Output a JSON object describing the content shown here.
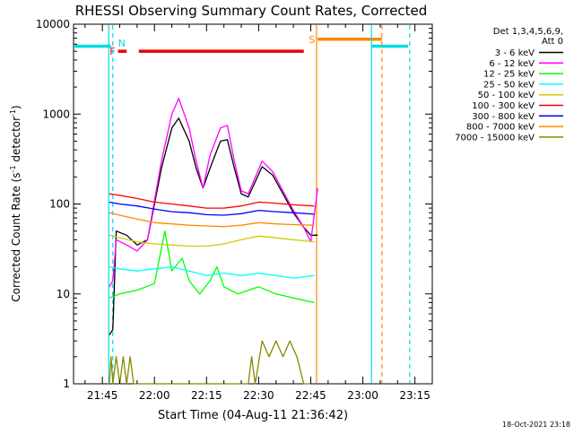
{
  "chart_data": {
    "type": "line",
    "title": "RHESSI Observing Summary Count Rates, Corrected",
    "xlabel": "Start Time (04-Aug-11 21:36:42)",
    "ylabel_prefix": "Corrected Count Rate (s",
    "ylabel_sup1": "-1",
    "ylabel_mid": " detector",
    "ylabel_sup2": "-1",
    "ylabel_suffix": ")",
    "yscale": "log",
    "ylim": [
      1,
      10000
    ],
    "xlim": [
      "21:36:42",
      "23:20:00"
    ],
    "y_ticks": [
      "1",
      "10",
      "100",
      "1000",
      "10000"
    ],
    "x_ticks": [
      "21:45",
      "22:00",
      "22:15",
      "22:30",
      "22:45",
      "23:00",
      "23:15"
    ],
    "grid": false,
    "legend": {
      "placement": "right",
      "header": [
        "Det 1,3,4,5,6,9,",
        "Att 0"
      ],
      "entries": [
        {
          "label": "3 - 6 keV",
          "color": "#000000"
        },
        {
          "label": "6 - 12 keV",
          "color": "#ff00ff"
        },
        {
          "label": "12 - 25 keV",
          "color": "#00ff00"
        },
        {
          "label": "25 - 50 keV",
          "color": "#00ffff"
        },
        {
          "label": "50 - 100 keV",
          "color": "#cccc00"
        },
        {
          "label": "100 - 300 keV",
          "color": "#ff0000"
        },
        {
          "label": "300 - 800 keV",
          "color": "#0000ff"
        },
        {
          "label": "800 - 7000 keV",
          "color": "#ff8800"
        },
        {
          "label": "7000 - 15000 keV",
          "color": "#888800"
        }
      ]
    },
    "series": [
      {
        "name": "3 - 6 keV",
        "color": "#000000",
        "points": [
          [
            "21:47:00",
            3.5
          ],
          [
            "21:48:00",
            4
          ],
          [
            "21:49:00",
            50
          ],
          [
            "21:52:00",
            45
          ],
          [
            "21:55:00",
            35
          ],
          [
            "21:58:00",
            40
          ],
          [
            "22:02:00",
            250
          ],
          [
            "22:05:00",
            700
          ],
          [
            "22:07:00",
            900
          ],
          [
            "22:10:00",
            500
          ],
          [
            "22:12:00",
            250
          ],
          [
            "22:14:00",
            150
          ],
          [
            "22:16:00",
            250
          ],
          [
            "22:19:00",
            500
          ],
          [
            "22:21:00",
            520
          ],
          [
            "22:23:00",
            250
          ],
          [
            "22:25:00",
            130
          ],
          [
            "22:27:00",
            120
          ],
          [
            "22:31:00",
            260
          ],
          [
            "22:34:00",
            210
          ],
          [
            "22:37:00",
            130
          ],
          [
            "22:40:00",
            80
          ],
          [
            "22:43:00",
            55
          ],
          [
            "22:45:00",
            45
          ],
          [
            "22:47:00",
            45
          ]
        ]
      },
      {
        "name": "6 - 12 keV",
        "color": "#ff00ff",
        "points": [
          [
            "21:47:00",
            12
          ],
          [
            "21:48:00",
            14
          ],
          [
            "21:49:00",
            40
          ],
          [
            "21:52:00",
            35
          ],
          [
            "21:55:00",
            30
          ],
          [
            "21:58:00",
            40
          ],
          [
            "22:02:00",
            300
          ],
          [
            "22:05:00",
            1000
          ],
          [
            "22:07:00",
            1500
          ],
          [
            "22:10:00",
            700
          ],
          [
            "22:12:00",
            300
          ],
          [
            "22:14:00",
            150
          ],
          [
            "22:16:00",
            350
          ],
          [
            "22:19:00",
            700
          ],
          [
            "22:21:00",
            750
          ],
          [
            "22:23:00",
            300
          ],
          [
            "22:25:00",
            140
          ],
          [
            "22:27:00",
            130
          ],
          [
            "22:31:00",
            300
          ],
          [
            "22:34:00",
            230
          ],
          [
            "22:37:00",
            140
          ],
          [
            "22:40:00",
            85
          ],
          [
            "22:43:00",
            55
          ],
          [
            "22:45:00",
            38
          ],
          [
            "22:47:00",
            150
          ]
        ]
      },
      {
        "name": "12 - 25 keV",
        "color": "#00ff00",
        "points": [
          [
            "21:47:00",
            9
          ],
          [
            "21:50:00",
            10
          ],
          [
            "21:55:00",
            11
          ],
          [
            "22:00:00",
            13
          ],
          [
            "22:03:00",
            50
          ],
          [
            "22:05:00",
            18
          ],
          [
            "22:08:00",
            25
          ],
          [
            "22:10:00",
            14
          ],
          [
            "22:13:00",
            10
          ],
          [
            "22:16:00",
            14
          ],
          [
            "22:18:00",
            20
          ],
          [
            "22:20:00",
            12
          ],
          [
            "22:24:00",
            10
          ],
          [
            "22:30:00",
            12
          ],
          [
            "22:35:00",
            10
          ],
          [
            "22:40:00",
            9
          ],
          [
            "22:46:00",
            8
          ]
        ]
      },
      {
        "name": "25 - 50 keV",
        "color": "#00ffff",
        "points": [
          [
            "21:47:00",
            20
          ],
          [
            "21:50:00",
            19
          ],
          [
            "21:55:00",
            18
          ],
          [
            "22:00:00",
            19
          ],
          [
            "22:05:00",
            20
          ],
          [
            "22:10:00",
            18
          ],
          [
            "22:15:00",
            16
          ],
          [
            "22:20:00",
            17
          ],
          [
            "22:25:00",
            16
          ],
          [
            "22:30:00",
            17
          ],
          [
            "22:35:00",
            16
          ],
          [
            "22:40:00",
            15
          ],
          [
            "22:46:00",
            16
          ]
        ]
      },
      {
        "name": "50 - 100 keV",
        "color": "#cccc00",
        "points": [
          [
            "21:47:00",
            45
          ],
          [
            "21:50:00",
            42
          ],
          [
            "21:55:00",
            38
          ],
          [
            "22:00:00",
            36
          ],
          [
            "22:05:00",
            35
          ],
          [
            "22:10:00",
            34
          ],
          [
            "22:15:00",
            34
          ],
          [
            "22:20:00",
            36
          ],
          [
            "22:25:00",
            40
          ],
          [
            "22:30:00",
            44
          ],
          [
            "22:35:00",
            42
          ],
          [
            "22:40:00",
            40
          ],
          [
            "22:46:00",
            38
          ]
        ]
      },
      {
        "name": "100 - 300 keV",
        "color": "#ff0000",
        "points": [
          [
            "21:47:00",
            130
          ],
          [
            "21:50:00",
            125
          ],
          [
            "21:55:00",
            115
          ],
          [
            "22:00:00",
            105
          ],
          [
            "22:05:00",
            100
          ],
          [
            "22:10:00",
            95
          ],
          [
            "22:15:00",
            90
          ],
          [
            "22:20:00",
            90
          ],
          [
            "22:25:00",
            95
          ],
          [
            "22:30:00",
            105
          ],
          [
            "22:35:00",
            102
          ],
          [
            "22:40:00",
            98
          ],
          [
            "22:46:00",
            95
          ]
        ]
      },
      {
        "name": "300 - 800 keV",
        "color": "#0000ff",
        "points": [
          [
            "21:47:00",
            105
          ],
          [
            "21:50:00",
            100
          ],
          [
            "21:55:00",
            95
          ],
          [
            "22:00:00",
            88
          ],
          [
            "22:05:00",
            82
          ],
          [
            "22:10:00",
            80
          ],
          [
            "22:15:00",
            76
          ],
          [
            "22:20:00",
            75
          ],
          [
            "22:25:00",
            78
          ],
          [
            "22:30:00",
            85
          ],
          [
            "22:35:00",
            82
          ],
          [
            "22:40:00",
            80
          ],
          [
            "22:46:00",
            77
          ]
        ]
      },
      {
        "name": "800 - 7000 keV",
        "color": "#ff8800",
        "points": [
          [
            "21:47:00",
            80
          ],
          [
            "21:50:00",
            75
          ],
          [
            "21:55:00",
            68
          ],
          [
            "22:00:00",
            62
          ],
          [
            "22:05:00",
            60
          ],
          [
            "22:10:00",
            58
          ],
          [
            "22:15:00",
            57
          ],
          [
            "22:20:00",
            56
          ],
          [
            "22:25:00",
            58
          ],
          [
            "22:30:00",
            62
          ],
          [
            "22:35:00",
            60
          ],
          [
            "22:40:00",
            59
          ],
          [
            "22:46:00",
            58
          ]
        ]
      },
      {
        "name": "7000 - 15000 keV",
        "color": "#888800",
        "points": [
          [
            "21:47:00",
            1
          ],
          [
            "21:47:30",
            2
          ],
          [
            "21:48:00",
            1
          ],
          [
            "21:49:00",
            2
          ],
          [
            "21:50:00",
            1
          ],
          [
            "21:51:00",
            2
          ],
          [
            "21:52:00",
            1
          ],
          [
            "21:53:00",
            2
          ],
          [
            "21:54:00",
            1
          ],
          [
            "21:56:00",
            1
          ],
          [
            "22:27:00",
            1
          ],
          [
            "22:28:00",
            2
          ],
          [
            "22:29:00",
            1
          ],
          [
            "22:31:00",
            3
          ],
          [
            "22:33:00",
            2
          ],
          [
            "22:35:00",
            3
          ],
          [
            "22:37:00",
            2
          ],
          [
            "22:39:00",
            3
          ],
          [
            "22:41:00",
            2
          ],
          [
            "22:43:00",
            1
          ],
          [
            "22:45:00",
            1
          ]
        ]
      }
    ],
    "bars": [
      {
        "label": "F",
        "color": "#ee0000",
        "y": 5000,
        "segments": [
          [
            "21:49:30",
            "21:52:00"
          ],
          [
            "21:55:30",
            "22:43:00"
          ]
        ]
      },
      {
        "label": "S",
        "color": "#ff8800",
        "y": 6800,
        "segments": [
          [
            "22:47:00",
            "23:05:30"
          ]
        ]
      },
      {
        "label": "",
        "color": "#00dddd",
        "y": 5700,
        "segments": [
          [
            "21:36:42",
            "21:47:30"
          ],
          [
            "23:02:30",
            "23:13:00"
          ]
        ]
      }
    ],
    "markers": [
      {
        "label": "N",
        "color": "#00dddd",
        "style": "dashed",
        "time": "21:48:00"
      },
      {
        "label": "",
        "color": "#00dddd",
        "style": "solid",
        "time": "21:46:50"
      },
      {
        "label": "",
        "color": "#00dddd",
        "style": "solid",
        "time": "23:02:30"
      },
      {
        "label": "",
        "color": "#00dddd",
        "style": "dashed",
        "time": "23:13:30"
      },
      {
        "label": "",
        "color": "#ff8800",
        "style": "solid",
        "time": "22:46:40"
      },
      {
        "label": "",
        "color": "#ff8800",
        "style": "dashed",
        "time": "23:05:30"
      }
    ],
    "timestamp": "18-Oct-2021 23:18"
  }
}
